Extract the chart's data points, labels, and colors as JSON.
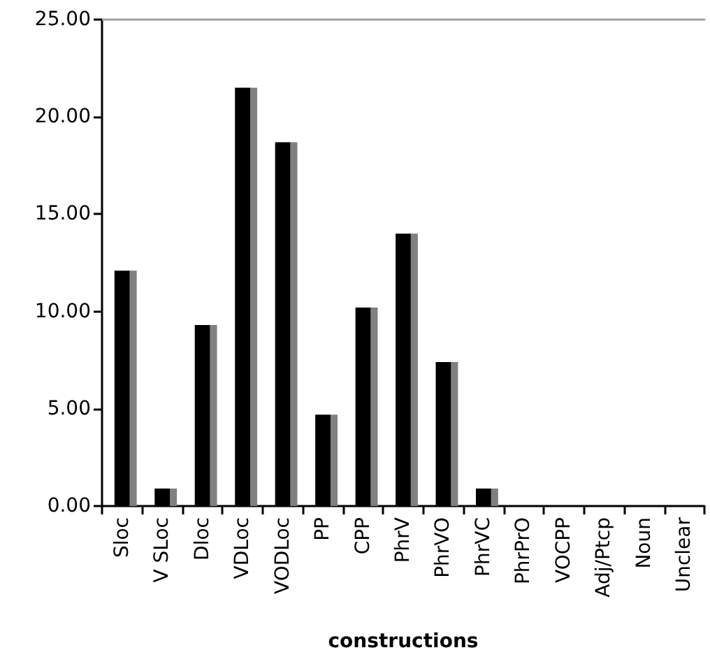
{
  "chart_data": {
    "type": "bar",
    "xlabel": "constructions",
    "categories": [
      "Sloc",
      "V SLoc",
      "Dloc",
      "VDLoc",
      "VODLoc",
      "PP",
      "CPP",
      "PhrV",
      "PhrVO",
      "PhrVC",
      "PhrPrO",
      "VOCPP",
      "Adj/Ptcp",
      "Noun",
      "Unclear"
    ],
    "values": [
      12.1,
      0.9,
      9.3,
      21.5,
      18.7,
      4.7,
      10.2,
      14.0,
      7.4,
      0.9,
      0,
      0,
      0,
      0,
      0
    ],
    "color": "#000000",
    "ylim": [
      0,
      25
    ],
    "yticks": [
      {
        "value": 0,
        "label": "0.00"
      },
      {
        "value": 5,
        "label": "5.00"
      },
      {
        "value": 10,
        "label": "10.00"
      },
      {
        "value": 15,
        "label": "15.00"
      },
      {
        "value": 20,
        "label": "20.00"
      },
      {
        "value": 25,
        "label": "25.00"
      }
    ]
  }
}
